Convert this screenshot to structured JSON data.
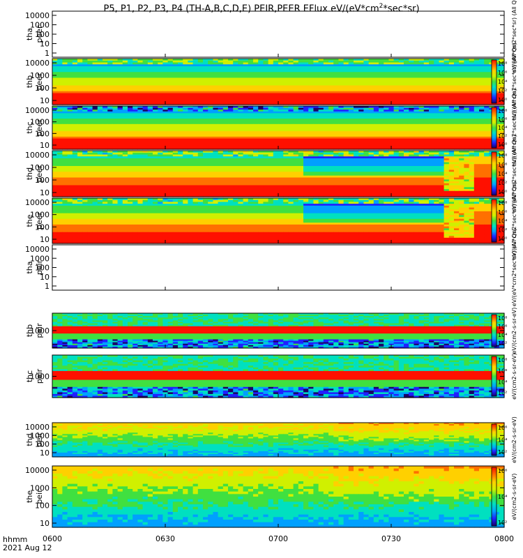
{
  "title": {
    "main": "P5, P1, P2, P3, P4 (TH-A,B,C,D,E) PEIR,PEER EFlux eV/(eV*cm",
    "sup": "2",
    "tail": "*sec*sr)"
  },
  "footer": {
    "line1": "hhmm",
    "line2": "2021 Aug 12"
  },
  "colors": {
    "frame": "#000000",
    "background": "#ffffff"
  },
  "chart_data": {
    "type": "heatmap",
    "x_ticks": [
      "0600",
      "0630",
      "0700",
      "0730",
      "0800"
    ],
    "x_range": [
      "06:00",
      "08:00"
    ],
    "xlabel": "hhmm",
    "colorbar_unit": "eV/(cm2-s-sr-eV)",
    "colormap": [
      "#1a0066",
      "#2020ff",
      "#00a0ff",
      "#00e0c0",
      "#40e040",
      "#d0f000",
      "#ffd000",
      "#ff7000",
      "#ff1000"
    ],
    "panels": [
      {
        "probe": "tha",
        "label1": "tha",
        "label2": "peer",
        "yticks": [
          "10000",
          "1000",
          "100",
          "10",
          "1"
        ],
        "has_data": false,
        "colorbar_ticks": [],
        "colorbar_label": "eV/(eV*cm2*sec*sr)  (All Qs)"
      },
      {
        "probe": "thb",
        "label1": "thb",
        "label2": "peer",
        "yticks": [
          "10000",
          "1000",
          "100",
          "10"
        ],
        "has_data": true,
        "pattern": "peer-steady",
        "colorbar_ticks": [
          "10⁸",
          "10⁶",
          "10⁴",
          "10²",
          "10⁰"
        ],
        "colorbar_label": "eV/(eV*cm2*sec*sr)  (All Qs)"
      },
      {
        "probe": "thc",
        "label1": "thc",
        "label2": "peer",
        "yticks": [
          "10000",
          "1000",
          "100",
          "10"
        ],
        "has_data": true,
        "pattern": "peer-noisy",
        "colorbar_ticks": [
          "10⁸",
          "10⁶",
          "10⁴",
          "10²",
          "10⁰"
        ],
        "colorbar_label": "eV/(eV*cm2*sec*sr)  (All Qs)"
      },
      {
        "probe": "thd",
        "label1": "thd",
        "label2": "peer",
        "yticks": [
          "10000",
          "1000",
          "100",
          "10"
        ],
        "has_data": true,
        "pattern": "peer-event",
        "colorbar_ticks": [
          "10⁸",
          "10⁶",
          "10⁴",
          "10²",
          "10⁰"
        ],
        "colorbar_label": "eV/(eV*cm2*sec*sr)  (All Qs)"
      },
      {
        "probe": "the",
        "label1": "the",
        "label2": "peer",
        "yticks": [
          "10000",
          "1000",
          "100",
          "10"
        ],
        "has_data": true,
        "pattern": "peer-event",
        "colorbar_ticks": [
          "10⁸",
          "10⁶",
          "10⁴",
          "10²",
          "10⁰"
        ],
        "colorbar_label": "eV/(eV*cm2*sec*sr)  (All Qs)"
      },
      {
        "probe": "tha",
        "label1": "tha",
        "label2": "peir",
        "yticks": [
          "10000",
          "1000",
          "100",
          "10",
          "1"
        ],
        "has_data": false,
        "colorbar_ticks": [],
        "colorbar_label": "eV/(eV*cm2*sec*sr)  (All Qs)"
      },
      {
        "probe": "thb",
        "label1": "thb",
        "label2": "peir",
        "yticks": [
          "1000"
        ],
        "has_data": true,
        "pattern": "peir-band",
        "colorbar_ticks": [
          "10⁸",
          "10⁶",
          "10⁴",
          "10²"
        ],
        "colorbar_label": "eV/(cm2-s-sr-eV)"
      },
      {
        "probe": "thc",
        "label1": "thc",
        "label2": "peir",
        "yticks": [
          "1000"
        ],
        "has_data": true,
        "pattern": "peir-band",
        "colorbar_ticks": [
          "10⁸",
          "10⁶",
          "10⁴",
          "10²"
        ],
        "colorbar_label": "eV/(cm2-s-sr-eV)"
      },
      {
        "probe": "thd",
        "label1": "thd",
        "label2": "peir",
        "yticks": [
          "10000",
          "1000",
          "100",
          "10"
        ],
        "has_data": true,
        "pattern": "peir-wide",
        "colorbar_ticks": [
          "10⁶",
          "10⁴",
          "10²"
        ],
        "colorbar_label": "eV/(cm2-s-sr-eV)"
      },
      {
        "probe": "the",
        "label1": "the",
        "label2": "peir",
        "yticks": [
          "10000",
          "1000",
          "100",
          "10"
        ],
        "has_data": true,
        "pattern": "peir-wide",
        "colorbar_ticks": [
          "10⁶",
          "10⁴",
          "10²"
        ],
        "colorbar_label": "eV/(cm2-s-sr-eV)"
      }
    ]
  }
}
